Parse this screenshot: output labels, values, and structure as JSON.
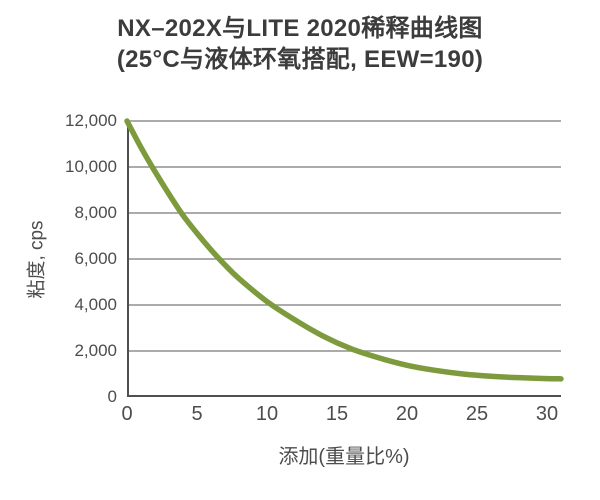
{
  "colors": {
    "background": "#ffffff",
    "curve": "#7d9b3c",
    "grid": "#8f8f8f",
    "axis": "#4f4f4f",
    "title_text": "#3c3c3c",
    "tick_text": "#4d4d4d"
  },
  "chart_data": {
    "type": "line",
    "title": "NX–202X与LITE 2020稀释曲线图",
    "subtitle": "(25°C与液体环氧搭配, EEW=190)",
    "xlabel": "添加(重量比%)",
    "ylabel": "粘度, cps",
    "xlim": [
      0,
      31
    ],
    "ylim": [
      0,
      12000
    ],
    "grid": "horizontal",
    "legend": "none",
    "xticks": {
      "values": [
        0,
        5,
        10,
        15,
        20,
        25,
        30
      ],
      "labels": [
        "0",
        "5",
        "10",
        "15",
        "20",
        "25",
        "30"
      ]
    },
    "yticks": {
      "values": [
        0,
        2000,
        4000,
        6000,
        8000,
        10000,
        12000
      ],
      "labels": [
        "0",
        "2,000",
        "4,000",
        "6,000",
        "8,000",
        "10,000",
        "12,000"
      ]
    },
    "series": [
      {
        "name": "NX-202X",
        "color": "#7d9b3c",
        "x": [
          0,
          1,
          2,
          3,
          4,
          5,
          6,
          7,
          8,
          10,
          12,
          14,
          16,
          18,
          20,
          22,
          24,
          26,
          28,
          30,
          31
        ],
        "y": [
          12000,
          10850,
          9800,
          8820,
          7900,
          7120,
          6400,
          5740,
          5150,
          4150,
          3350,
          2650,
          2100,
          1700,
          1380,
          1160,
          1000,
          900,
          840,
          800,
          790
        ]
      }
    ]
  }
}
